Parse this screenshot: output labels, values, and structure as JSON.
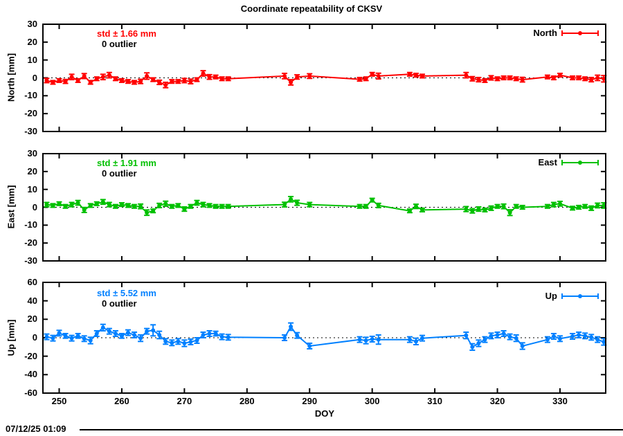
{
  "title": "Coordinate repeatability of CKSV",
  "timestamp": "07/12/25 01:09",
  "xaxis": {
    "label": "DOY",
    "ticks": [
      250,
      260,
      270,
      280,
      290,
      300,
      310,
      320,
      330
    ],
    "xlim": [
      247.4,
      337.3
    ]
  },
  "chart_data": [
    {
      "id": "north",
      "type": "scatter",
      "legend": "North",
      "ylabel": "North [mm]",
      "std_label": "std ± 1.66 mm",
      "outlier_label": "0 outlier",
      "color": "#ff0000",
      "ylim": [
        -30,
        30
      ],
      "yticks": [
        30,
        20,
        10,
        0,
        -10,
        -20,
        -30
      ],
      "grid": "zero-dotted",
      "legend_position": "top-right",
      "x": [
        248,
        249,
        250,
        251,
        252,
        253,
        254,
        255,
        256,
        257,
        258,
        259,
        260,
        261,
        262,
        263,
        264,
        265,
        266,
        267,
        268,
        269,
        270,
        271,
        272,
        273,
        274,
        275,
        276,
        277,
        286,
        287,
        288,
        290,
        298,
        299,
        300,
        301,
        306,
        307,
        308,
        315,
        316,
        317,
        318,
        319,
        320,
        321,
        322,
        323,
        324,
        328,
        329,
        330,
        332,
        333,
        334,
        335,
        336,
        337
      ],
      "y": [
        -1.5,
        -2.5,
        -1.5,
        -2,
        0.5,
        -1.5,
        1,
        -2.5,
        -0.5,
        0.5,
        1.5,
        -0.5,
        -1.5,
        -2,
        -2.5,
        -2,
        1,
        -1,
        -2.5,
        -4,
        -2,
        -2,
        -1.5,
        -2,
        -1,
        2.5,
        0.5,
        0.5,
        -0.5,
        -0.5,
        1,
        -2.5,
        0.5,
        1,
        -0.8,
        -0.5,
        2,
        1,
        2,
        1.5,
        1,
        1.5,
        -0.5,
        -1,
        -1.5,
        0,
        -0.5,
        0,
        0,
        -0.5,
        -1,
        0.5,
        0,
        1.5,
        0,
        0,
        -0.5,
        -1,
        0,
        -0.5
      ],
      "yerr": [
        1.2,
        1.0,
        1.0,
        1.1,
        1.5,
        1.0,
        1.4,
        1.0,
        1.0,
        1.5,
        1.5,
        1.0,
        1.0,
        1.0,
        1.0,
        1.2,
        1.8,
        1.0,
        1.2,
        1.5,
        1.0,
        1.0,
        1.2,
        1.3,
        1.0,
        1.5,
        1.3,
        1.0,
        1.0,
        1.0,
        1.5,
        1.5,
        1.2,
        1.3,
        1.0,
        1.0,
        1.0,
        1.6,
        1.0,
        1.0,
        1.0,
        1.5,
        1.2,
        1.2,
        1.0,
        1.2,
        1.0,
        1.0,
        1.0,
        1.0,
        1.3,
        1.0,
        1.0,
        1.0,
        1.0,
        1.0,
        1.0,
        1.2,
        1.5,
        1.8
      ]
    },
    {
      "id": "east",
      "type": "scatter",
      "legend": "East",
      "ylabel": "East [mm]",
      "std_label": "std ± 1.91 mm",
      "outlier_label": "0 outlier",
      "color": "#00c000",
      "ylim": [
        -30,
        30
      ],
      "yticks": [
        30,
        20,
        10,
        0,
        -10,
        -20,
        -30
      ],
      "grid": "zero-dotted",
      "legend_position": "top-right",
      "x": [
        248,
        249,
        250,
        251,
        252,
        253,
        254,
        255,
        256,
        257,
        258,
        259,
        260,
        261,
        262,
        263,
        264,
        265,
        266,
        267,
        268,
        269,
        270,
        271,
        272,
        273,
        274,
        275,
        276,
        277,
        286,
        287,
        288,
        290,
        298,
        299,
        300,
        301,
        306,
        307,
        308,
        315,
        316,
        317,
        318,
        319,
        320,
        321,
        322,
        323,
        324,
        328,
        329,
        330,
        332,
        333,
        334,
        335,
        336,
        337
      ],
      "y": [
        1.5,
        1,
        2,
        0.5,
        1.5,
        2.5,
        -1.5,
        1,
        2,
        3,
        1.5,
        0.5,
        1.5,
        1,
        0.5,
        0.5,
        -3,
        -2,
        1,
        2,
        0.5,
        1,
        -1,
        0.5,
        2.5,
        1.5,
        1,
        0.5,
        0.5,
        0.5,
        1.5,
        4.5,
        2.5,
        1.5,
        0.5,
        0.5,
        4,
        1,
        -2,
        0.5,
        -1.5,
        -1,
        -2,
        -1,
        -1.5,
        -0.5,
        0.5,
        0.5,
        -3,
        0.5,
        0,
        0.5,
        1.5,
        2,
        -0.5,
        0,
        0.5,
        -0.5,
        1,
        1
      ],
      "yerr": [
        1.2,
        1.0,
        1.0,
        1.0,
        1.2,
        1.3,
        1.4,
        1.0,
        1.0,
        1.3,
        1.2,
        1.0,
        1.0,
        1.0,
        1.0,
        1.3,
        1.5,
        1.0,
        1.2,
        1.4,
        1.0,
        1.0,
        1.2,
        1.0,
        1.3,
        1.2,
        1.0,
        1.0,
        1.0,
        1.0,
        1.3,
        1.5,
        1.4,
        1.2,
        1.0,
        1.0,
        1.0,
        1.2,
        1.0,
        1.2,
        1.0,
        1.4,
        1.2,
        1.2,
        1.0,
        1.2,
        1.0,
        1.3,
        1.6,
        1.0,
        1.0,
        1.0,
        1.2,
        1.3,
        1.0,
        1.0,
        1.0,
        1.2,
        1.3,
        1.5
      ]
    },
    {
      "id": "up",
      "type": "scatter",
      "legend": "Up",
      "ylabel": "Up [mm]",
      "std_label": "std ± 5.52 mm",
      "outlier_label": "0 outlier",
      "color": "#0080ff",
      "ylim": [
        -60,
        60
      ],
      "yticks": [
        60,
        40,
        20,
        0,
        -20,
        -40,
        -60
      ],
      "grid": "zero-dotted",
      "legend_position": "top-right",
      "x": [
        248,
        249,
        250,
        251,
        252,
        253,
        254,
        255,
        256,
        257,
        258,
        259,
        260,
        261,
        262,
        263,
        264,
        265,
        266,
        267,
        268,
        269,
        270,
        271,
        272,
        273,
        274,
        275,
        276,
        277,
        286,
        287,
        288,
        290,
        298,
        299,
        300,
        301,
        306,
        307,
        308,
        315,
        316,
        317,
        318,
        319,
        320,
        321,
        322,
        323,
        324,
        328,
        329,
        330,
        332,
        333,
        334,
        335,
        336,
        337
      ],
      "y": [
        1,
        -0.5,
        5,
        2,
        -0.5,
        2,
        -1,
        -3,
        4.5,
        11,
        7,
        4.5,
        2,
        5.5,
        3,
        -0.5,
        7,
        8,
        3,
        -4,
        -5.5,
        -4,
        -6,
        -4.5,
        -3,
        3,
        4.5,
        4.5,
        1,
        0.5,
        0,
        12,
        2.5,
        -9,
        -2,
        -3,
        -1.5,
        -2,
        -2,
        -4,
        -0.5,
        2.5,
        -10,
        -6,
        -2,
        2,
        3,
        4.5,
        1,
        -0.5,
        -9,
        -2,
        1.5,
        -1,
        1.5,
        3,
        2,
        0.5,
        -2,
        -4.5
      ],
      "yerr": [
        3,
        3,
        3,
        2.5,
        3,
        2.5,
        3,
        3.5,
        3,
        3.5,
        3,
        3,
        2.5,
        3,
        3,
        3.5,
        3,
        6,
        4,
        3,
        3,
        3,
        3.5,
        3,
        3,
        3,
        3,
        2.5,
        3,
        3,
        3,
        4,
        3,
        3,
        3,
        3.5,
        3,
        5,
        3,
        3.5,
        3,
        3.5,
        3.5,
        3.5,
        3,
        3,
        3,
        3,
        3,
        3.5,
        3.5,
        3,
        3,
        3,
        3,
        3,
        3,
        3,
        3,
        3.5
      ]
    }
  ]
}
